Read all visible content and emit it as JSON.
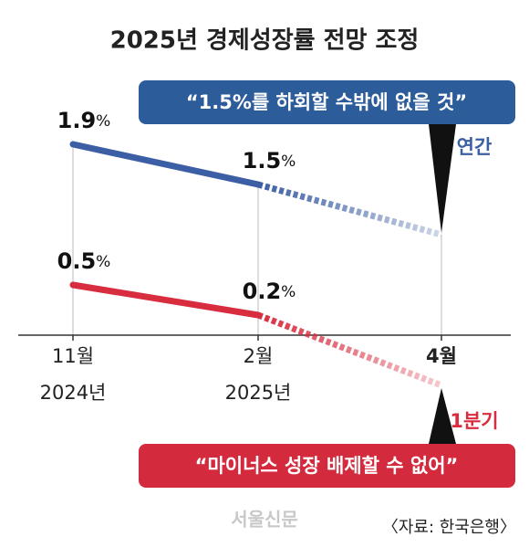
{
  "chart_data": {
    "type": "line",
    "title": "2025년 경제성장률 전망 조정",
    "categories": [
      "11월",
      "2월",
      "4월"
    ],
    "category_years": [
      "2024년",
      "2025년",
      null
    ],
    "series": [
      {
        "name": "연간",
        "color": "#3c5ea5",
        "values": [
          1.9,
          1.5,
          1.0
        ],
        "value_labels": [
          "1.9%",
          "1.5%",
          null
        ]
      },
      {
        "name": "1분기",
        "color": "#d82c3f",
        "values": [
          0.5,
          0.2,
          -0.5
        ],
        "value_labels": [
          "0.5%",
          "0.2%",
          null
        ]
      }
    ],
    "annotations": [
      "“1.5%를 하회할 수밖에 없을 것”",
      "“마이너스 성장 배제할 수 없어”"
    ],
    "ylim": [
      -0.6,
      2.4
    ],
    "logo": "서울신문",
    "source": "〈자료: 한국은행〉"
  }
}
